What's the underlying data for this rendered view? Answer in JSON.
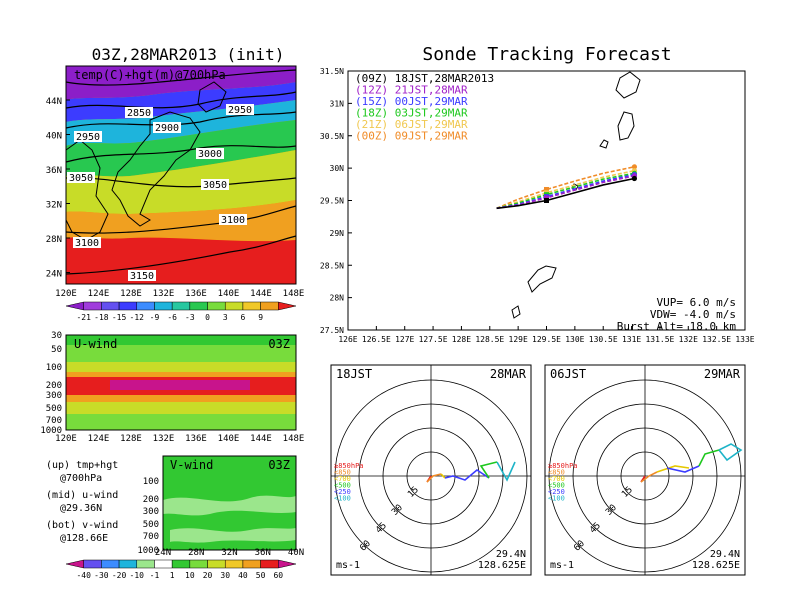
{
  "title": "Sonde Tracking Forecast",
  "init_title": "03Z,28MAR2013 (init)",
  "map_panel": {
    "label": "temp(C)+hgt(m)@700hPa",
    "lat_ticks": [
      "44N",
      "40N",
      "36N",
      "32N",
      "28N",
      "24N"
    ],
    "lon_ticks": [
      "120E",
      "124E",
      "128E",
      "132E",
      "136E",
      "140E",
      "144E",
      "148E"
    ],
    "contour_labels": [
      "2850",
      "2900",
      "2950",
      "2950",
      "3000",
      "3050",
      "3050",
      "3100",
      "3100",
      "3150"
    ],
    "colorbar_labels": [
      "-21",
      "-18",
      "-15",
      "-12",
      "-9",
      "-6",
      "-3",
      "0",
      "3",
      "6",
      "9"
    ]
  },
  "uwind_panel": {
    "label": "U-wind",
    "time": "03Z",
    "p_ticks": [
      "30",
      "50",
      "100",
      "200",
      "300",
      "500",
      "700",
      "1000"
    ],
    "lon_ticks": [
      "120E",
      "124E",
      "128E",
      "132E",
      "136E",
      "140E",
      "144E",
      "148E"
    ]
  },
  "vwind_panel": {
    "label": "V-wind",
    "time": "03Z",
    "p_ticks": [
      "100",
      "200",
      "300",
      "500",
      "700",
      "1000"
    ],
    "lat_ticks": [
      "24N",
      "28N",
      "32N",
      "36N",
      "40N"
    ],
    "colorbar_labels": [
      "-40",
      "-30",
      "-20",
      "-10",
      "-1",
      "1",
      "10",
      "20",
      "30",
      "40",
      "50",
      "60"
    ]
  },
  "notes": [
    {
      "a": "(up) tmp+hgt",
      "b": "@700hPa"
    },
    {
      "a": "(mid) u-wind",
      "b": "@29.36N"
    },
    {
      "a": "(bot) v-wind",
      "b": "@128.66E"
    }
  ],
  "legend": [
    {
      "text": "(09Z) 18JST,28MAR2013",
      "color": "#000000"
    },
    {
      "text": "(12Z) 21JST,28MAR",
      "color": "#a020c8"
    },
    {
      "text": "(15Z) 00JST,29MAR",
      "color": "#3c3cff"
    },
    {
      "text": "(18Z) 03JST,29MAR",
      "color": "#1ec81e"
    },
    {
      "text": "(21Z) 06JST,29MAR",
      "color": "#f0c850"
    },
    {
      "text": "(00Z) 09JST,29MAR",
      "color": "#f08c28"
    }
  ],
  "params": {
    "vup": "VUP= 6.0 m/s",
    "vdw": "VDW= -4.0 m/s",
    "burst": "Burst Alt= 18.0 km"
  },
  "polar_left": {
    "time": "18JST",
    "date": "28MAR",
    "lat": "29.4N",
    "lon": "128.625E",
    "unit": "ms-1"
  },
  "polar_right": {
    "time": "06JST",
    "date": "29MAR",
    "lat": "29.4N",
    "lon": "128.625E",
    "unit": "ms-1"
  },
  "polar_rings": [
    "15",
    "30",
    "45",
    "60"
  ],
  "polar_legend": [
    {
      "text": "≥850hPa",
      "color": "#e61e1e"
    },
    {
      "text": "<850",
      "color": "#f08c28"
    },
    {
      "text": "<700",
      "color": "#e6c800"
    },
    {
      "text": "<500",
      "color": "#1ec81e"
    },
    {
      "text": "<250",
      "color": "#3c3cff"
    },
    {
      "text": "<100",
      "color": "#1eb4c8"
    }
  ],
  "chart_data": {
    "type": "line",
    "title": "Sonde Tracking Forecast",
    "xlabel": "",
    "ylabel": "",
    "xlim": [
      126,
      133
    ],
    "ylim": [
      27.5,
      31.5
    ],
    "x_ticks": [
      "126E",
      "126.5E",
      "127E",
      "127.5E",
      "128E",
      "128.5E",
      "129E",
      "129.5E",
      "130E",
      "130.5E",
      "131E",
      "131.5E",
      "132E",
      "132.5E",
      "133E"
    ],
    "y_ticks": [
      "27.5N",
      "28N",
      "28.5N",
      "29N",
      "29.5N",
      "30N",
      "30.5N",
      "31N",
      "31.5N"
    ],
    "series": [
      {
        "name": "(09Z) 18JST,28MAR2013",
        "color": "#000000",
        "x": [
          128.62,
          129.0,
          129.5,
          130.0,
          130.5,
          131.05
        ],
        "y": [
          29.38,
          29.42,
          29.5,
          29.62,
          29.74,
          29.84
        ]
      },
      {
        "name": "(12Z) 21JST,28MAR",
        "color": "#a020c8",
        "x": [
          128.62,
          129.0,
          129.5,
          130.0,
          130.5,
          131.05
        ],
        "y": [
          29.38,
          29.43,
          29.54,
          29.66,
          29.78,
          29.88
        ]
      },
      {
        "name": "(15Z) 00JST,29MAR",
        "color": "#3c3cff",
        "x": [
          128.62,
          129.0,
          129.5,
          130.0,
          130.5,
          131.05
        ],
        "y": [
          29.38,
          29.44,
          29.56,
          29.68,
          29.8,
          29.9
        ]
      },
      {
        "name": "(18Z) 03JST,29MAR",
        "color": "#1ec81e",
        "x": [
          128.62,
          129.0,
          129.5,
          130.0,
          130.5,
          131.05
        ],
        "y": [
          29.38,
          29.46,
          29.59,
          29.71,
          29.83,
          29.92
        ]
      },
      {
        "name": "(21Z) 06JST,29MAR",
        "color": "#f0c850",
        "x": [
          128.62,
          129.0,
          129.5,
          130.0,
          130.5,
          131.05
        ],
        "y": [
          29.38,
          29.48,
          29.62,
          29.74,
          29.86,
          29.96
        ]
      },
      {
        "name": "(00Z) 09JST,29MAR",
        "color": "#f08c28",
        "x": [
          128.62,
          129.0,
          129.5,
          130.0,
          130.5,
          131.05
        ],
        "y": [
          29.38,
          29.52,
          29.67,
          29.8,
          29.92,
          30.02
        ]
      }
    ]
  }
}
